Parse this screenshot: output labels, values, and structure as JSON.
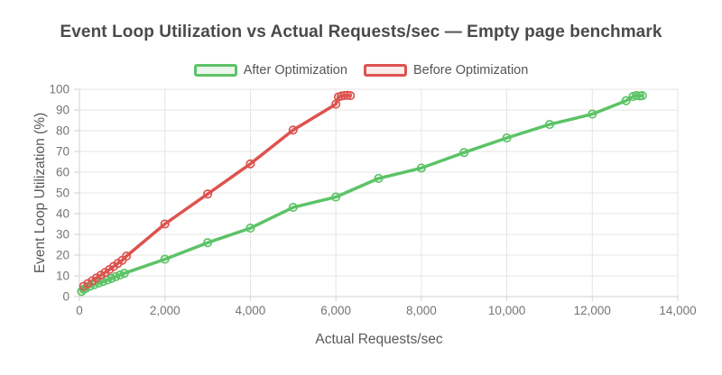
{
  "title": "Event Loop Utilization vs Actual Requests/sec — Empty page benchmark",
  "legend": {
    "items": [
      {
        "label": "After Optimization",
        "color": "#5cc366",
        "fill": "#eaf7ec"
      },
      {
        "label": "Before Optimization",
        "color": "#dd534f",
        "fill": "#fbebea"
      }
    ]
  },
  "axes": {
    "x_title": "Actual Requests/sec",
    "y_title": "Event Loop Utilization (%)"
  },
  "colors": {
    "title": "#4a4a4a",
    "axis_title": "#595959",
    "tick_label": "#757575",
    "gridline": "#e4e4e4",
    "axis_line": "#d2d2d2",
    "background": "#ffffff"
  },
  "chart_data": {
    "type": "line",
    "title": "Event Loop Utilization vs Actual Requests/sec — Empty page benchmark",
    "xlabel": "Actual Requests/sec",
    "ylabel": "Event Loop Utilization (%)",
    "xlim": [
      0,
      14000
    ],
    "ylim": [
      0,
      100
    ],
    "x_ticks": [
      0,
      2000,
      4000,
      6000,
      8000,
      10000,
      12000,
      14000
    ],
    "x_tick_labels": [
      "0",
      "2,000",
      "4,000",
      "6,000",
      "8,000",
      "10,000",
      "12,000",
      "14,000"
    ],
    "y_ticks": [
      0,
      10,
      20,
      30,
      40,
      50,
      60,
      70,
      80,
      90,
      100
    ],
    "grid": true,
    "legend_position": "top",
    "marker": "open-circle",
    "series": [
      {
        "name": "After Optimization",
        "color": "#5cc366",
        "points": [
          [
            50,
            2.5
          ],
          [
            100,
            3.5
          ],
          [
            150,
            4
          ],
          [
            250,
            5
          ],
          [
            350,
            5.8
          ],
          [
            450,
            6.5
          ],
          [
            550,
            7.2
          ],
          [
            650,
            8
          ],
          [
            750,
            8.8
          ],
          [
            850,
            9.6
          ],
          [
            950,
            10.4
          ],
          [
            1050,
            11.2
          ],
          [
            2000,
            18
          ],
          [
            3000,
            26
          ],
          [
            4000,
            33
          ],
          [
            5000,
            43
          ],
          [
            6000,
            48
          ],
          [
            7000,
            57
          ],
          [
            8000,
            62
          ],
          [
            9000,
            69.5
          ],
          [
            10000,
            76.5
          ],
          [
            11000,
            83
          ],
          [
            12000,
            88
          ],
          [
            12790,
            94.5
          ],
          [
            12950,
            96.5
          ],
          [
            13030,
            97
          ],
          [
            13110,
            96.8
          ],
          [
            13170,
            96.9
          ]
        ]
      },
      {
        "name": "Before Optimization",
        "color": "#dd534f",
        "points": [
          [
            100,
            5
          ],
          [
            200,
            6.3
          ],
          [
            300,
            7.6
          ],
          [
            400,
            9
          ],
          [
            500,
            10.3
          ],
          [
            600,
            11.6
          ],
          [
            700,
            13
          ],
          [
            800,
            14.5
          ],
          [
            900,
            16
          ],
          [
            1000,
            17.5
          ],
          [
            1100,
            19.5
          ],
          [
            2000,
            35
          ],
          [
            3000,
            49.5
          ],
          [
            4000,
            64
          ],
          [
            5000,
            80.3
          ],
          [
            6000,
            92.8
          ],
          [
            6060,
            96.3
          ],
          [
            6130,
            96.8
          ],
          [
            6200,
            97
          ],
          [
            6270,
            97.1
          ],
          [
            6340,
            96.9
          ]
        ]
      }
    ]
  }
}
